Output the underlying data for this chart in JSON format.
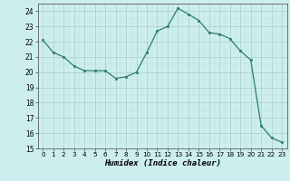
{
  "x": [
    0,
    1,
    2,
    3,
    4,
    5,
    6,
    7,
    8,
    9,
    10,
    11,
    12,
    13,
    14,
    15,
    16,
    17,
    18,
    19,
    20,
    21,
    22,
    23
  ],
  "y": [
    22.1,
    21.3,
    21.0,
    20.4,
    20.1,
    20.1,
    20.1,
    19.6,
    19.7,
    20.0,
    21.3,
    22.7,
    23.0,
    24.2,
    23.8,
    23.4,
    22.6,
    22.5,
    22.2,
    21.4,
    20.8,
    16.5,
    15.7,
    15.4
  ],
  "xlabel": "Humidex (Indice chaleur)",
  "xlim": [
    -0.5,
    23.5
  ],
  "ylim": [
    15,
    24.5
  ],
  "yticks": [
    15,
    16,
    17,
    18,
    19,
    20,
    21,
    22,
    23,
    24
  ],
  "xticks": [
    0,
    1,
    2,
    3,
    4,
    5,
    6,
    7,
    8,
    9,
    10,
    11,
    12,
    13,
    14,
    15,
    16,
    17,
    18,
    19,
    20,
    21,
    22,
    23
  ],
  "line_color": "#2e7d6e",
  "marker": "s",
  "marker_size": 2.0,
  "bg_color": "#cceeee",
  "grid_color_major": "#aacccc",
  "grid_color_minor": "#bbdddd",
  "line_width": 0.9,
  "tick_labelsize": 5.5,
  "xlabel_fontsize": 6.5
}
